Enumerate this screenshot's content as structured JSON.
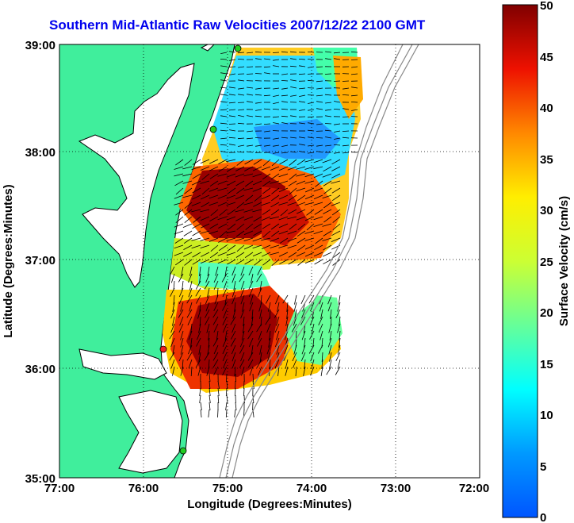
{
  "title": "Southern Mid-Atlantic Raw Velocities 2007/12/22 2100 GMT",
  "chart_data": {
    "type": "heatmap",
    "subtype": "surface current velocity map with vector arrows",
    "xlabel": "Longitude (Degrees:Minutes)",
    "ylabel": "Latitude (Degrees:Minutes)",
    "xlim": [
      -77,
      -72
    ],
    "ylim": [
      35,
      39
    ],
    "x_tick_labels": [
      "77:00",
      "76:00",
      "75:00",
      "74:00",
      "73:00",
      "72:00"
    ],
    "y_tick_labels": [
      "35:00",
      "36:00",
      "37:00",
      "38:00",
      "39:00"
    ],
    "grid": "dotted",
    "colorbar": {
      "label": "Surface Velocity (cm/s)",
      "min": 0,
      "max": 50,
      "tick_labels": [
        "0",
        "5",
        "10",
        "15",
        "20",
        "25",
        "30",
        "35",
        "40",
        "45",
        "50"
      ]
    },
    "colors": {
      "land": "#40ee9c",
      "title": "#0000ee",
      "station_green": "#22cc22",
      "station_red": "#ee2222"
    }
  }
}
